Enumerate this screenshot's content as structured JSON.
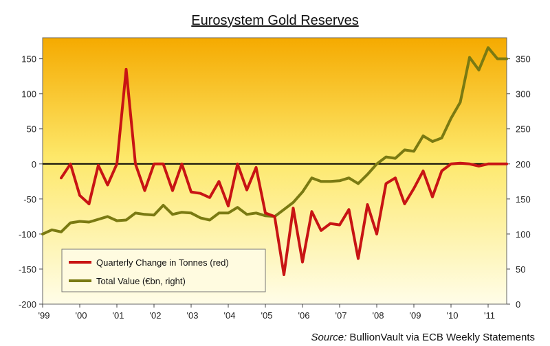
{
  "chart_data": {
    "type": "line",
    "title": "Eurosystem  Gold Reserves",
    "xlabel": "",
    "x_ticks": [
      "'99",
      "'00",
      "'01",
      "'02",
      "'03",
      "'04",
      "'05",
      "'06",
      "'07",
      "'08",
      "'09",
      "'10",
      "'11"
    ],
    "y_left": {
      "min": -200,
      "max": 180,
      "ticks": [
        -200,
        -150,
        -100,
        -50,
        0,
        50,
        100,
        150
      ]
    },
    "y_right": {
      "min": 0,
      "max": 380,
      "ticks": [
        0,
        50,
        100,
        150,
        200,
        250,
        300,
        350
      ]
    },
    "grid": false,
    "legend_position": "bottom-left",
    "series": [
      {
        "name": "Quarterly Change in Tonnes (red)",
        "axis": "left",
        "color": "#c81414",
        "x": [
          1999.5,
          1999.75,
          2000.0,
          2000.25,
          2000.5,
          2000.75,
          2001.0,
          2001.25,
          2001.5,
          2001.75,
          2002.0,
          2002.25,
          2002.5,
          2002.75,
          2003.0,
          2003.25,
          2003.5,
          2003.75,
          2004.0,
          2004.25,
          2004.5,
          2004.75,
          2005.0,
          2005.25,
          2005.5,
          2005.75,
          2006.0,
          2006.25,
          2006.5,
          2006.75,
          2007.0,
          2007.25,
          2007.5,
          2007.75,
          2008.0,
          2008.25,
          2008.5,
          2008.75,
          2009.0,
          2009.25,
          2009.5,
          2009.75,
          2010.0,
          2010.25,
          2010.5,
          2010.75,
          2011.0,
          2011.25,
          2011.5
        ],
        "values": [
          -20,
          0,
          -45,
          -57,
          -2,
          -30,
          0,
          135,
          0,
          -38,
          0,
          0,
          -38,
          0,
          -40,
          -42,
          -48,
          -25,
          -60,
          0,
          -37,
          -5,
          -70,
          -75,
          -158,
          -63,
          -140,
          -68,
          -95,
          -85,
          -87,
          -65,
          -135,
          -58,
          -100,
          -28,
          -20,
          -57,
          -35,
          -10,
          -47,
          -10,
          0,
          1,
          0,
          -3,
          0,
          0,
          0
        ]
      },
      {
        "name": "Total Value (€bn, right)",
        "axis": "right",
        "color": "#7a7a12",
        "x": [
          1999.0,
          1999.25,
          1999.5,
          1999.75,
          2000.0,
          2000.25,
          2000.5,
          2000.75,
          2001.0,
          2001.25,
          2001.5,
          2001.75,
          2002.0,
          2002.25,
          2002.5,
          2002.75,
          2003.0,
          2003.25,
          2003.5,
          2003.75,
          2004.0,
          2004.25,
          2004.5,
          2004.75,
          2005.0,
          2005.25,
          2005.5,
          2005.75,
          2006.0,
          2006.25,
          2006.5,
          2006.75,
          2007.0,
          2007.25,
          2007.5,
          2007.75,
          2008.0,
          2008.25,
          2008.5,
          2008.75,
          2009.0,
          2009.25,
          2009.5,
          2009.75,
          2010.0,
          2010.25,
          2010.5,
          2010.75,
          2011.0,
          2011.25,
          2011.5
        ],
        "values": [
          100,
          106,
          103,
          116,
          118,
          117,
          121,
          125,
          119,
          120,
          130,
          128,
          127,
          141,
          128,
          131,
          130,
          123,
          120,
          130,
          130,
          138,
          128,
          130,
          126,
          125,
          135,
          145,
          160,
          180,
          175,
          175,
          176,
          180,
          172,
          185,
          200,
          210,
          208,
          220,
          218,
          240,
          232,
          237,
          265,
          288,
          352,
          334,
          366,
          350,
          350
        ]
      }
    ],
    "zero_line_color": "#000000",
    "background_top": "#f5aa00",
    "background_bottom": "#fffde8",
    "source": {
      "label": "Source:",
      "text": " BullionVault via ECB Weekly Statements"
    }
  }
}
